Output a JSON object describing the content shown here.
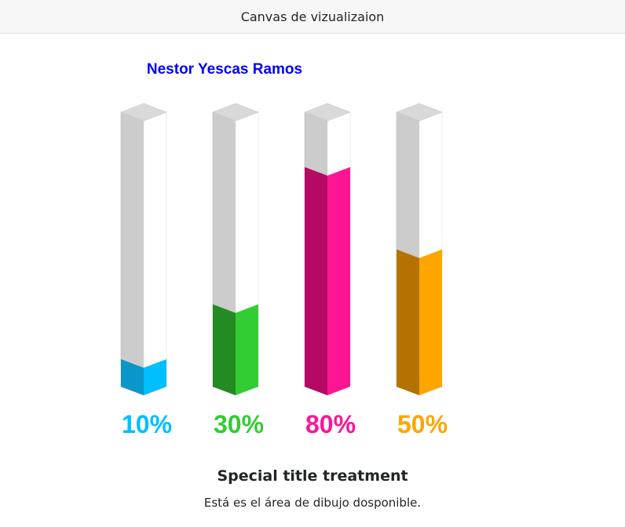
{
  "header": {
    "title": "Canvas de vizualizaion"
  },
  "chart_data": {
    "type": "bar",
    "title": "Nestor Yescas Ramos",
    "title_color": "#0000ff",
    "ylim": [
      0,
      100
    ],
    "values": [
      10,
      30,
      80,
      50
    ],
    "labels": [
      "10%",
      "30%",
      "80%",
      "50%"
    ],
    "colors": [
      {
        "front": "#00bfff",
        "side": "#0a96c8"
      },
      {
        "front": "#32cd32",
        "side": "#228b22"
      },
      {
        "front": "#ff1493",
        "side": "#b40a64"
      },
      {
        "front": "#ffa500",
        "side": "#b47300"
      }
    ],
    "empty_color": {
      "front": "#ffffff",
      "side": "#cccccc",
      "top": "#d9d9d9"
    }
  },
  "card": {
    "title": "Special title treatment",
    "text": "Está es el área de dibujo dosponible."
  }
}
